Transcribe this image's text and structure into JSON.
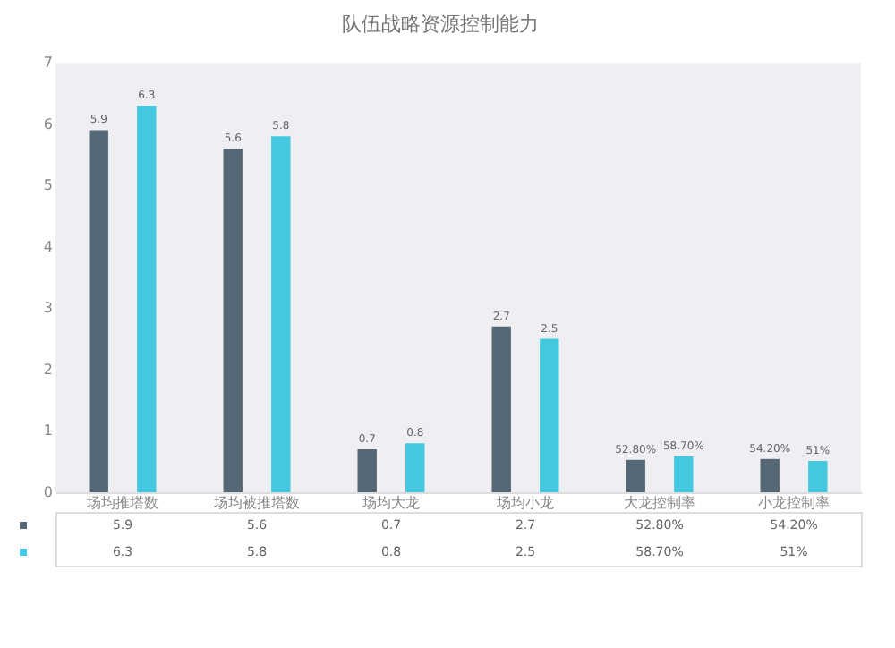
{
  "chart_data": {
    "type": "bar",
    "title": "队伍战略资源控制能力",
    "categories": [
      "场均推塔数",
      "场均被推塔数",
      "场均大龙",
      "场均小龙",
      "大龙控制率",
      "小龙控制率"
    ],
    "series": [
      {
        "color": "#566775",
        "values": [
          5.9,
          5.6,
          0.7,
          2.7,
          0.528,
          0.542
        ],
        "value_labels": [
          "5.9",
          "5.6",
          "0.7",
          "2.7",
          "52.80%",
          "54.20%"
        ]
      },
      {
        "color": "#44c8e0",
        "values": [
          6.3,
          5.8,
          0.8,
          2.5,
          0.587,
          0.51
        ],
        "value_labels": [
          "6.3",
          "5.8",
          "0.8",
          "2.5",
          "58.70%",
          "51%"
        ]
      }
    ],
    "ylim": [
      0,
      7
    ],
    "yticks": [
      0,
      1,
      2,
      3,
      4,
      5,
      6,
      7
    ],
    "grid": false
  }
}
